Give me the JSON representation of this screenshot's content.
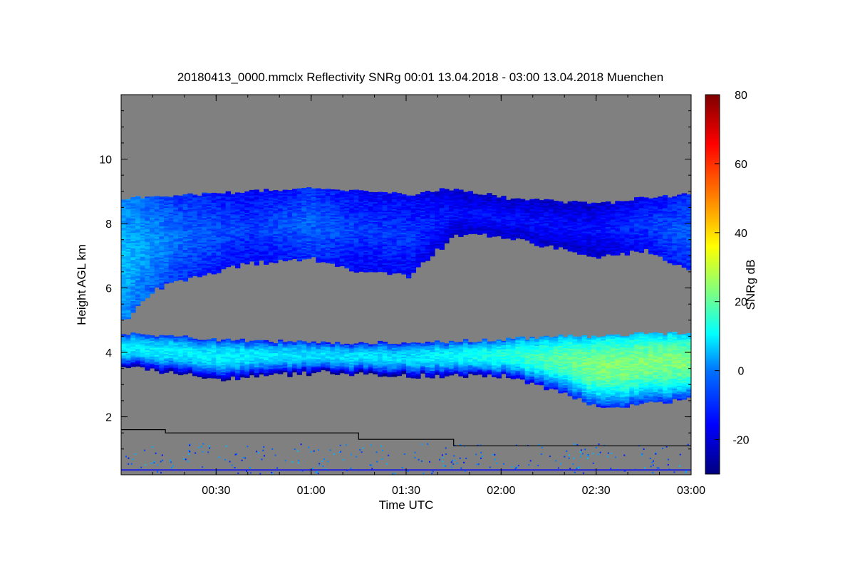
{
  "chart_data": {
    "type": "heatmap",
    "title": "20180413_0000.mmclx Reflectivity SNRg   00:01 13.04.2018 - 03:00 13.04.2018 Muenchen",
    "xlabel": "Time UTC",
    "ylabel": "Height AGL km",
    "colorbar_label": "SNRg dB",
    "xlim": [
      "00:00",
      "03:00"
    ],
    "ylim": [
      0.2,
      12.0
    ],
    "zlim": [
      -30,
      80
    ],
    "x_ticks": [
      "00:30",
      "01:00",
      "01:30",
      "02:00",
      "02:30",
      "03:00"
    ],
    "y_ticks": [
      "2",
      "4",
      "6",
      "8",
      "10"
    ],
    "colorbar_ticks": [
      "-20",
      "0",
      "20",
      "40",
      "60",
      "80"
    ],
    "background_color": "#808080",
    "colormap": [
      "#00007f",
      "#0000ff",
      "#007fff",
      "#00ffff",
      "#7fff7f",
      "#ffff00",
      "#ff7f00",
      "#ff0000",
      "#7f0000"
    ],
    "upper_cloud_layer": {
      "time": [
        "00:00",
        "00:10",
        "00:20",
        "00:40",
        "01:00",
        "01:15",
        "01:30",
        "01:45",
        "02:00",
        "02:30",
        "02:45",
        "03:00"
      ],
      "top_km": [
        8.8,
        8.8,
        8.9,
        9.0,
        9.1,
        9.0,
        8.9,
        9.1,
        8.8,
        8.6,
        8.8,
        8.9
      ],
      "base_km": [
        5.0,
        6.0,
        6.3,
        6.8,
        6.9,
        6.5,
        6.4,
        7.7,
        7.6,
        7.0,
        7.2,
        6.5
      ],
      "typical_snr_db": [
        5,
        0,
        -5,
        -10,
        -5,
        -10,
        -10,
        -15,
        -15,
        -15,
        -10,
        -5
      ]
    },
    "lower_cloud_layer": {
      "time": [
        "00:00",
        "00:30",
        "01:00",
        "01:30",
        "02:00",
        "02:15",
        "02:30",
        "02:45",
        "03:00"
      ],
      "top_km": [
        4.6,
        4.4,
        4.3,
        4.3,
        4.4,
        4.5,
        4.5,
        4.6,
        4.6
      ],
      "base_km": [
        3.6,
        3.2,
        3.4,
        3.3,
        3.3,
        2.9,
        2.3,
        2.4,
        2.6
      ],
      "peak_snr_db": [
        10,
        10,
        8,
        8,
        15,
        20,
        25,
        25,
        25
      ]
    },
    "step_line": {
      "time": [
        "00:00",
        "00:14",
        "01:15",
        "01:45",
        "03:00"
      ],
      "height_km": [
        1.6,
        1.5,
        1.3,
        1.1,
        1.1
      ]
    },
    "surface_line_km": 0.35
  }
}
